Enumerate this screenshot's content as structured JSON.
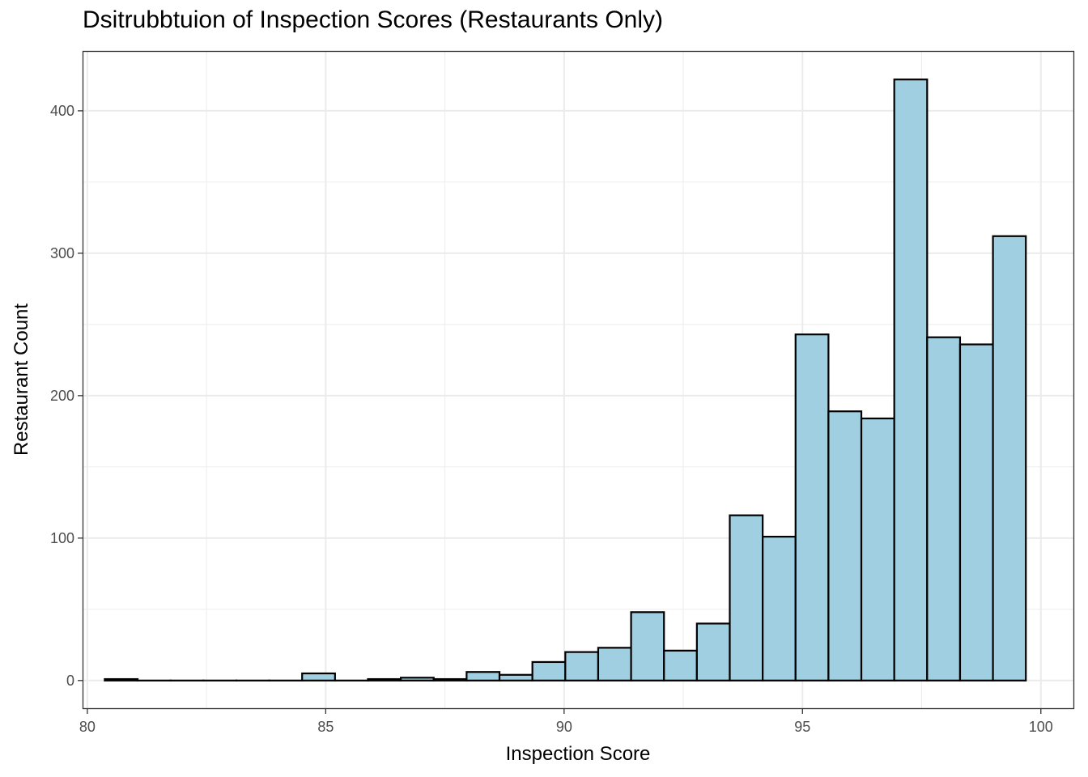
{
  "chart_data": {
    "type": "bar",
    "title": "Dsitrubbtuion of Inspection Scores (Restaurants Only)",
    "xlabel": "Inspection Score",
    "ylabel": "Restaurant Count",
    "xlim": [
      79.9,
      100.7
    ],
    "ylim": [
      -20,
      442
    ],
    "x_ticks": [
      "80",
      "85",
      "90",
      "95",
      "100"
    ],
    "y_ticks": [
      "0",
      "100",
      "200",
      "300",
      "400"
    ],
    "grid": true,
    "bin_width": 0.69,
    "bar_fill": "#9fcfe0",
    "bar_edge": "#000000",
    "bins": [
      {
        "x": 80.71,
        "value": 1
      },
      {
        "x": 81.4,
        "value": 0
      },
      {
        "x": 82.09,
        "value": 0
      },
      {
        "x": 82.78,
        "value": 0
      },
      {
        "x": 83.47,
        "value": 0
      },
      {
        "x": 84.16,
        "value": 0
      },
      {
        "x": 84.85,
        "value": 5
      },
      {
        "x": 85.54,
        "value": 0
      },
      {
        "x": 86.23,
        "value": 1
      },
      {
        "x": 86.92,
        "value": 2
      },
      {
        "x": 87.61,
        "value": 1
      },
      {
        "x": 88.3,
        "value": 6
      },
      {
        "x": 88.99,
        "value": 4
      },
      {
        "x": 89.68,
        "value": 13
      },
      {
        "x": 90.37,
        "value": 20
      },
      {
        "x": 91.06,
        "value": 23
      },
      {
        "x": 91.75,
        "value": 48
      },
      {
        "x": 92.44,
        "value": 21
      },
      {
        "x": 93.13,
        "value": 40
      },
      {
        "x": 93.82,
        "value": 116
      },
      {
        "x": 94.51,
        "value": 101
      },
      {
        "x": 95.2,
        "value": 243
      },
      {
        "x": 95.89,
        "value": 189
      },
      {
        "x": 96.58,
        "value": 184
      },
      {
        "x": 97.27,
        "value": 422
      },
      {
        "x": 97.96,
        "value": 241
      },
      {
        "x": 98.65,
        "value": 236
      },
      {
        "x": 99.34,
        "value": 312
      }
    ]
  }
}
